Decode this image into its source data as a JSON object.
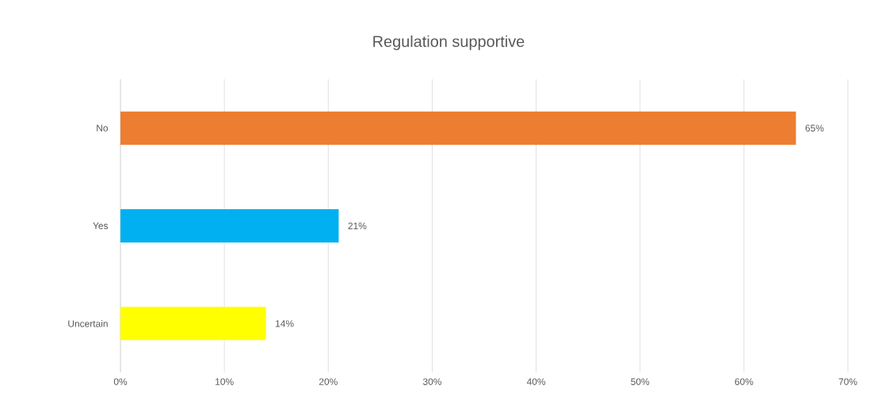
{
  "chart_data": {
    "type": "bar",
    "orientation": "horizontal",
    "title": "Regulation supportive",
    "categories": [
      "No",
      "Yes",
      "Uncertain"
    ],
    "values": [
      65,
      21,
      14
    ],
    "colors": [
      "#ed7d31",
      "#00b0f0",
      "#ffff00"
    ],
    "value_labels": [
      "65%",
      "21%",
      "14%"
    ],
    "xlim": [
      0,
      70
    ],
    "xticks": [
      {
        "value": 0,
        "label": "0%"
      },
      {
        "value": 10,
        "label": "10%"
      },
      {
        "value": 20,
        "label": "20%"
      },
      {
        "value": 30,
        "label": "30%"
      },
      {
        "value": 40,
        "label": "40%"
      },
      {
        "value": 50,
        "label": "50%"
      },
      {
        "value": 60,
        "label": "60%"
      },
      {
        "value": 70,
        "label": "70%"
      }
    ],
    "grid": "x"
  }
}
